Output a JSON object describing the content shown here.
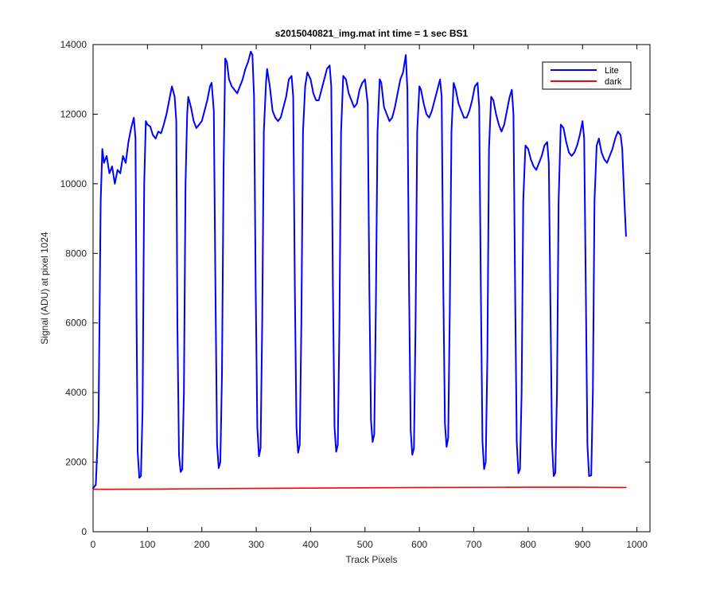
{
  "chart_data": {
    "type": "line",
    "title": "s2015040821_img.mat int time = 1 sec   BS1",
    "xlabel": "Track Pixels",
    "ylabel": "Signal (ADU) at pixel 1024",
    "xlim": [
      0,
      1024
    ],
    "ylim": [
      0,
      14000
    ],
    "xticks": [
      0,
      100,
      200,
      300,
      400,
      500,
      600,
      700,
      800,
      900,
      1000
    ],
    "yticks": [
      0,
      2000,
      4000,
      6000,
      8000,
      10000,
      12000,
      14000
    ],
    "grid": false,
    "legend_position": "top-right",
    "series": [
      {
        "name": "Lite",
        "color": "#0000ff",
        "points": [
          [
            0,
            1250
          ],
          [
            5,
            1350
          ],
          [
            10,
            3200
          ],
          [
            14,
            9500
          ],
          [
            17,
            11000
          ],
          [
            20,
            10600
          ],
          [
            25,
            10800
          ],
          [
            30,
            10300
          ],
          [
            35,
            10500
          ],
          [
            40,
            10000
          ],
          [
            45,
            10400
          ],
          [
            50,
            10300
          ],
          [
            55,
            10800
          ],
          [
            60,
            10600
          ],
          [
            65,
            11200
          ],
          [
            70,
            11600
          ],
          [
            75,
            11900
          ],
          [
            78,
            11300
          ],
          [
            80,
            6000
          ],
          [
            82,
            2300
          ],
          [
            85,
            1550
          ],
          [
            88,
            1600
          ],
          [
            91,
            3500
          ],
          [
            94,
            10000
          ],
          [
            97,
            11800
          ],
          [
            100,
            11700
          ],
          [
            105,
            11650
          ],
          [
            110,
            11400
          ],
          [
            115,
            11300
          ],
          [
            120,
            11500
          ],
          [
            125,
            11450
          ],
          [
            130,
            11700
          ],
          [
            135,
            12000
          ],
          [
            140,
            12400
          ],
          [
            145,
            12800
          ],
          [
            150,
            12500
          ],
          [
            153,
            11800
          ],
          [
            155,
            6000
          ],
          [
            158,
            2200
          ],
          [
            161,
            1720
          ],
          [
            164,
            1800
          ],
          [
            167,
            4000
          ],
          [
            170,
            10000
          ],
          [
            173,
            12000
          ],
          [
            175,
            12500
          ],
          [
            180,
            12200
          ],
          [
            185,
            11800
          ],
          [
            190,
            11600
          ],
          [
            195,
            11700
          ],
          [
            200,
            11800
          ],
          [
            205,
            12100
          ],
          [
            210,
            12400
          ],
          [
            215,
            12800
          ],
          [
            218,
            12900
          ],
          [
            222,
            12100
          ],
          [
            225,
            7000
          ],
          [
            228,
            2500
          ],
          [
            231,
            1830
          ],
          [
            234,
            2000
          ],
          [
            237,
            4500
          ],
          [
            240,
            10500
          ],
          [
            243,
            13600
          ],
          [
            246,
            13500
          ],
          [
            250,
            13000
          ],
          [
            255,
            12800
          ],
          [
            260,
            12700
          ],
          [
            265,
            12600
          ],
          [
            270,
            12800
          ],
          [
            275,
            13000
          ],
          [
            280,
            13300
          ],
          [
            285,
            13500
          ],
          [
            290,
            13800
          ],
          [
            293,
            13700
          ],
          [
            296,
            12500
          ],
          [
            299,
            7000
          ],
          [
            302,
            3000
          ],
          [
            305,
            2170
          ],
          [
            308,
            2400
          ],
          [
            311,
            6000
          ],
          [
            314,
            11500
          ],
          [
            318,
            12900
          ],
          [
            320,
            13300
          ],
          [
            325,
            12800
          ],
          [
            330,
            12100
          ],
          [
            335,
            11900
          ],
          [
            340,
            11800
          ],
          [
            345,
            11900
          ],
          [
            350,
            12200
          ],
          [
            355,
            12500
          ],
          [
            360,
            13000
          ],
          [
            365,
            13100
          ],
          [
            368,
            12500
          ],
          [
            371,
            7000
          ],
          [
            374,
            3000
          ],
          [
            377,
            2270
          ],
          [
            380,
            2500
          ],
          [
            383,
            6000
          ],
          [
            386,
            11500
          ],
          [
            390,
            12800
          ],
          [
            394,
            13200
          ],
          [
            400,
            13000
          ],
          [
            405,
            12600
          ],
          [
            410,
            12400
          ],
          [
            415,
            12400
          ],
          [
            420,
            12700
          ],
          [
            425,
            13000
          ],
          [
            430,
            13300
          ],
          [
            435,
            13400
          ],
          [
            438,
            12800
          ],
          [
            441,
            7000
          ],
          [
            444,
            3000
          ],
          [
            447,
            2300
          ],
          [
            450,
            2500
          ],
          [
            453,
            6000
          ],
          [
            456,
            11500
          ],
          [
            460,
            13100
          ],
          [
            465,
            13000
          ],
          [
            470,
            12600
          ],
          [
            475,
            12400
          ],
          [
            480,
            12200
          ],
          [
            485,
            12300
          ],
          [
            490,
            12700
          ],
          [
            495,
            12900
          ],
          [
            500,
            13000
          ],
          [
            505,
            12300
          ],
          [
            508,
            7000
          ],
          [
            511,
            3200
          ],
          [
            514,
            2580
          ],
          [
            517,
            2800
          ],
          [
            520,
            6500
          ],
          [
            523,
            11500
          ],
          [
            527,
            13000
          ],
          [
            530,
            12900
          ],
          [
            535,
            12200
          ],
          [
            540,
            12000
          ],
          [
            545,
            11800
          ],
          [
            550,
            11900
          ],
          [
            555,
            12200
          ],
          [
            560,
            12600
          ],
          [
            565,
            13000
          ],
          [
            570,
            13200
          ],
          [
            575,
            13700
          ],
          [
            578,
            12700
          ],
          [
            581,
            7000
          ],
          [
            584,
            2900
          ],
          [
            587,
            2210
          ],
          [
            590,
            2400
          ],
          [
            593,
            6000
          ],
          [
            596,
            11500
          ],
          [
            600,
            12800
          ],
          [
            603,
            12700
          ],
          [
            608,
            12300
          ],
          [
            613,
            12000
          ],
          [
            618,
            11900
          ],
          [
            623,
            12100
          ],
          [
            628,
            12400
          ],
          [
            633,
            12700
          ],
          [
            638,
            13000
          ],
          [
            641,
            12500
          ],
          [
            644,
            7000
          ],
          [
            647,
            3100
          ],
          [
            650,
            2440
          ],
          [
            653,
            2700
          ],
          [
            656,
            6500
          ],
          [
            659,
            11500
          ],
          [
            663,
            12900
          ],
          [
            667,
            12700
          ],
          [
            672,
            12300
          ],
          [
            677,
            12100
          ],
          [
            682,
            11900
          ],
          [
            687,
            11900
          ],
          [
            692,
            12100
          ],
          [
            697,
            12400
          ],
          [
            702,
            12800
          ],
          [
            707,
            12900
          ],
          [
            710,
            12200
          ],
          [
            713,
            7000
          ],
          [
            716,
            2600
          ],
          [
            719,
            1800
          ],
          [
            722,
            2000
          ],
          [
            725,
            5000
          ],
          [
            728,
            11000
          ],
          [
            732,
            12500
          ],
          [
            736,
            12400
          ],
          [
            741,
            12000
          ],
          [
            746,
            11700
          ],
          [
            751,
            11500
          ],
          [
            756,
            11700
          ],
          [
            761,
            12100
          ],
          [
            766,
            12500
          ],
          [
            770,
            12700
          ],
          [
            773,
            12000
          ],
          [
            776,
            7000
          ],
          [
            779,
            2600
          ],
          [
            782,
            1680
          ],
          [
            785,
            1800
          ],
          [
            788,
            4000
          ],
          [
            791,
            9500
          ],
          [
            795,
            11100
          ],
          [
            800,
            11000
          ],
          [
            805,
            10700
          ],
          [
            810,
            10500
          ],
          [
            815,
            10400
          ],
          [
            820,
            10600
          ],
          [
            825,
            10800
          ],
          [
            830,
            11100
          ],
          [
            835,
            11200
          ],
          [
            838,
            10600
          ],
          [
            841,
            6500
          ],
          [
            844,
            2500
          ],
          [
            847,
            1600
          ],
          [
            850,
            1700
          ],
          [
            853,
            4000
          ],
          [
            856,
            9500
          ],
          [
            860,
            11700
          ],
          [
            865,
            11600
          ],
          [
            870,
            11200
          ],
          [
            875,
            10900
          ],
          [
            880,
            10800
          ],
          [
            885,
            10900
          ],
          [
            890,
            11100
          ],
          [
            895,
            11400
          ],
          [
            900,
            11800
          ],
          [
            903,
            11300
          ],
          [
            906,
            7000
          ],
          [
            909,
            2500
          ],
          [
            912,
            1600
          ],
          [
            916,
            1620
          ],
          [
            919,
            4000
          ],
          [
            922,
            9500
          ],
          [
            926,
            11100
          ],
          [
            930,
            11300
          ],
          [
            935,
            10900
          ],
          [
            940,
            10700
          ],
          [
            945,
            10600
          ],
          [
            950,
            10800
          ],
          [
            955,
            11000
          ],
          [
            960,
            11300
          ],
          [
            965,
            11500
          ],
          [
            970,
            11400
          ],
          [
            973,
            11000
          ],
          [
            977,
            9500
          ],
          [
            980,
            8500
          ]
        ]
      },
      {
        "name": "dark",
        "color": "#ff0000",
        "points": [
          [
            0,
            1220
          ],
          [
            100,
            1225
          ],
          [
            200,
            1235
          ],
          [
            300,
            1245
          ],
          [
            400,
            1255
          ],
          [
            500,
            1262
          ],
          [
            600,
            1270
          ],
          [
            700,
            1275
          ],
          [
            800,
            1280
          ],
          [
            900,
            1280
          ],
          [
            980,
            1272
          ]
        ]
      }
    ]
  }
}
